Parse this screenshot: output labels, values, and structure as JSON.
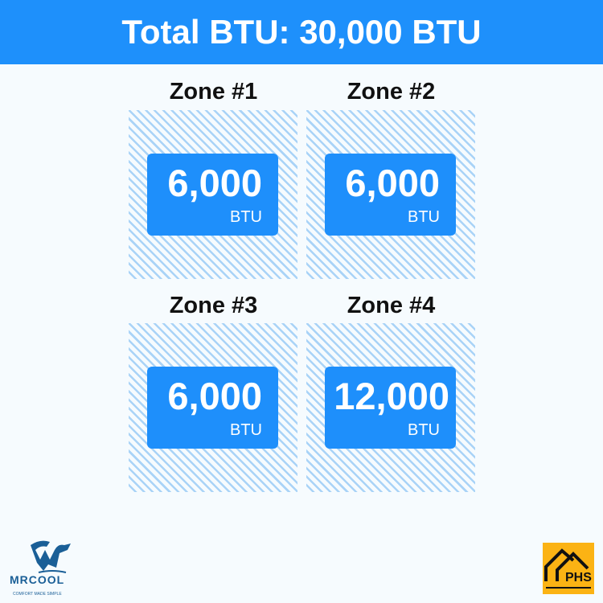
{
  "header": {
    "title": "Total BTU: 30,000 BTU"
  },
  "zones": [
    {
      "label": "Zone #1",
      "value": "6,000",
      "unit": "BTU"
    },
    {
      "label": "Zone #2",
      "value": "6,000",
      "unit": "BTU"
    },
    {
      "label": "Zone #3",
      "value": "6,000",
      "unit": "BTU"
    },
    {
      "label": "Zone #4",
      "value": "12,000",
      "unit": "BTU"
    }
  ],
  "logos": {
    "mrcool": "MRCOOL",
    "mrcool_tagline": "COMFORT MADE SIMPLE",
    "phs": "PHS"
  },
  "colors": {
    "accent": "#1e90fb",
    "hatch": "#a9d3f7",
    "phs_bg": "#fbb314"
  }
}
